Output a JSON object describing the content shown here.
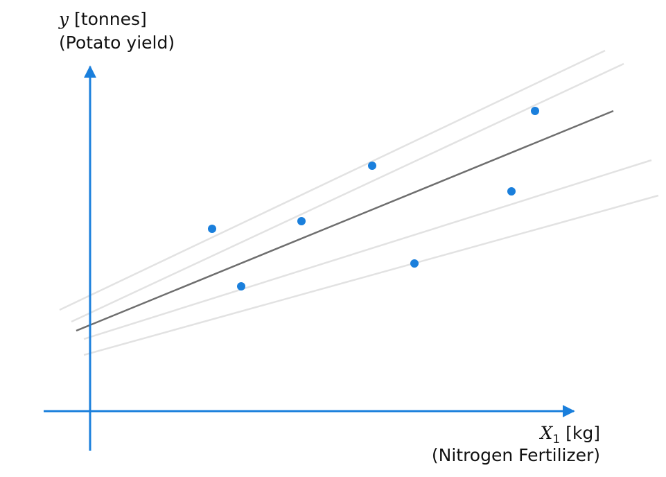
{
  "y_axis": {
    "variable": "y",
    "unit": "[tonnes]",
    "name": "(Potato yield)"
  },
  "x_axis": {
    "variable": "X",
    "subscript": "1",
    "unit": "[kg]",
    "name": "(Nitrogen Fertilizer)"
  }
}
